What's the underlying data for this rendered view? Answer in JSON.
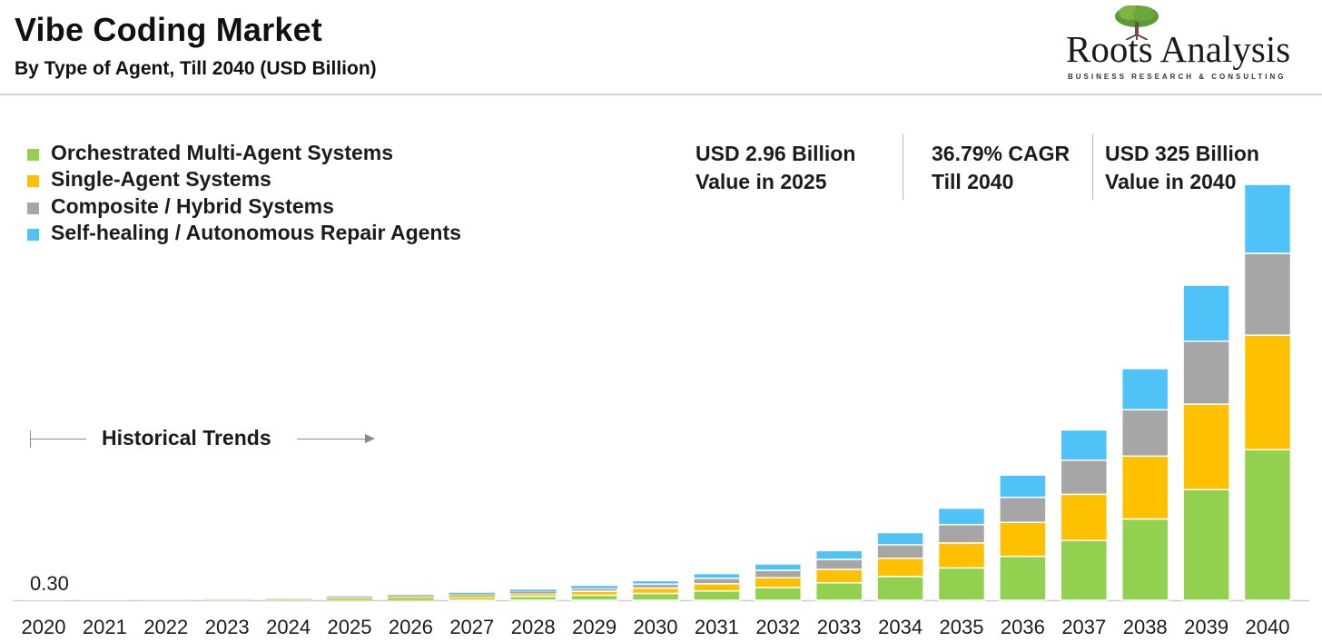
{
  "header": {
    "title": "Vibe Coding Market",
    "subtitle": "By Type of Agent, Till 2040 (USD Billion)"
  },
  "logo": {
    "name": "Roots Analysis",
    "tagline": "BUSINESS RESEARCH & CONSULTING"
  },
  "stats": [
    {
      "line1": "USD 2.96 Billion",
      "line2": "Value in 2025"
    },
    {
      "line1": "36.79% CAGR",
      "line2": "Till 2040"
    },
    {
      "line1": "USD 325 Billion",
      "line2": "Value in 2040"
    }
  ],
  "annotations": {
    "historical": "Historical Trends",
    "first_value": "0.30"
  },
  "colors": {
    "orchestrated": "#92d050",
    "single": "#ffc000",
    "composite": "#a6a6a6",
    "self_healing": "#4fc3f7",
    "axis": "#d0d0d0"
  },
  "chart_data": {
    "type": "bar",
    "stacked": true,
    "title": "Vibe Coding Market",
    "subtitle": "By Type of Agent, Till 2040 (USD Billion)",
    "legend_position": "top-left",
    "grid": false,
    "categories": [
      "2020",
      "2021",
      "2022",
      "2023",
      "2024",
      "2025",
      "2026",
      "2027",
      "2028",
      "2029",
      "2030",
      "2031",
      "2032",
      "2033",
      "2034",
      "2035",
      "2036",
      "2037",
      "2038",
      "2039",
      "2040"
    ],
    "series": [
      {
        "name": "Orchestrated Multi-Agent Systems",
        "color_key": "orchestrated",
        "values": [
          0.1,
          0.2,
          0.3,
          0.4,
          0.6,
          1.0,
          1.4,
          2.0,
          2.8,
          3.7,
          5.0,
          6.8,
          9.3,
          12.8,
          17.4,
          23.7,
          32.2,
          43.8,
          59.6,
          81.1,
          110.4
        ]
      },
      {
        "name": "Single-Agent Systems",
        "color_key": "single",
        "values": [
          0.1,
          0.1,
          0.2,
          0.3,
          0.4,
          0.8,
          1.1,
          1.5,
          2.1,
          2.9,
          3.9,
          5.3,
          7.2,
          9.8,
          13.4,
          18.3,
          24.9,
          33.9,
          46.1,
          62.7,
          84.0
        ]
      },
      {
        "name": "Composite / Hybrid Systems",
        "color_key": "composite",
        "values": [
          0.05,
          0.1,
          0.15,
          0.2,
          0.35,
          0.6,
          0.8,
          1.1,
          1.5,
          2.1,
          2.9,
          4.0,
          5.4,
          7.3,
          9.9,
          13.5,
          18.4,
          25.0,
          34.0,
          46.2,
          60.0
        ]
      },
      {
        "name": "Self-healing / Autonomous Repair Agents",
        "color_key": "self_healing",
        "values": [
          0.05,
          0.05,
          0.1,
          0.15,
          0.25,
          0.56,
          0.7,
          1.0,
          1.4,
          1.9,
          2.6,
          3.5,
          4.8,
          6.5,
          8.9,
          12.0,
          16.3,
          22.2,
          30.2,
          41.0,
          50.6
        ]
      }
    ],
    "ylim": [
      0,
      340
    ],
    "first_data_label": "0.30",
    "xlabel": "",
    "ylabel": ""
  }
}
